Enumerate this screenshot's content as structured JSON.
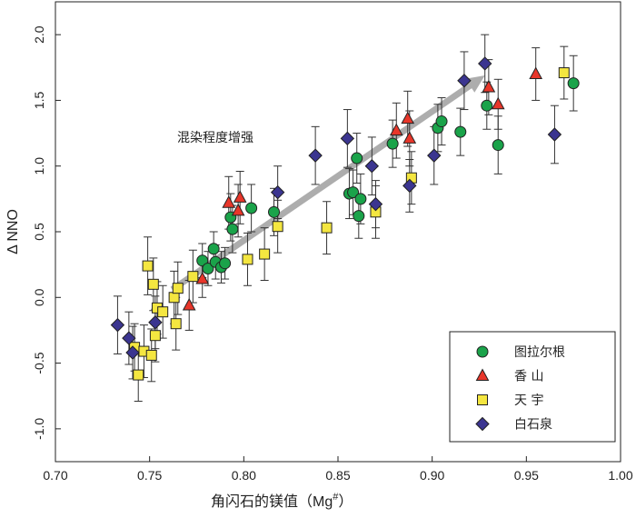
{
  "chart_data": {
    "type": "scatter",
    "xlabel": "角闪石的镁值（Mg#）",
    "xlabel_main": "角闪石的镁值（Mg",
    "xlabel_sup": "#",
    "xlabel_close": "）",
    "ylabel": "Δ NNO",
    "xlim": [
      0.7,
      1.0
    ],
    "ylim": [
      -1.25,
      2.25
    ],
    "xticks": [
      "0.70",
      "0.75",
      "0.80",
      "0.85",
      "0.90",
      "0.95",
      "1.00"
    ],
    "yticks": [
      "-1.0",
      "-0.5",
      "0.0",
      "0.5",
      "1.0",
      "1.5",
      "2.0"
    ],
    "annotation": "混染程度增强",
    "trend_arrow": {
      "from": [
        0.762,
        0.06
      ],
      "to": [
        0.928,
        1.69
      ]
    },
    "legend_position": "bottom-right",
    "series": [
      {
        "name": "图拉尔根",
        "marker": "circle",
        "color": "#1aa34a",
        "points": [
          {
            "x": 0.778,
            "y": 0.28,
            "err": 0.13
          },
          {
            "x": 0.781,
            "y": 0.22,
            "err": 0.13
          },
          {
            "x": 0.784,
            "y": 0.37,
            "err": 0.13
          },
          {
            "x": 0.785,
            "y": 0.27,
            "err": 0.13
          },
          {
            "x": 0.788,
            "y": 0.23,
            "err": 0.12
          },
          {
            "x": 0.79,
            "y": 0.26,
            "err": 0.12
          },
          {
            "x": 0.793,
            "y": 0.61,
            "err": 0.18
          },
          {
            "x": 0.794,
            "y": 0.52,
            "err": 0.18
          },
          {
            "x": 0.804,
            "y": 0.68,
            "err": 0.18
          },
          {
            "x": 0.816,
            "y": 0.65,
            "err": 0.18
          },
          {
            "x": 0.856,
            "y": 0.79,
            "err": 0.19
          },
          {
            "x": 0.858,
            "y": 0.8,
            "err": 0.17
          },
          {
            "x": 0.86,
            "y": 1.06,
            "err": 0.19
          },
          {
            "x": 0.861,
            "y": 0.62,
            "err": 0.17
          },
          {
            "x": 0.862,
            "y": 0.75,
            "err": 0.19
          },
          {
            "x": 0.879,
            "y": 1.17,
            "err": 0.18
          },
          {
            "x": 0.903,
            "y": 1.29,
            "err": 0.18
          },
          {
            "x": 0.905,
            "y": 1.34,
            "err": 0.18
          },
          {
            "x": 0.915,
            "y": 1.26,
            "err": 0.18
          },
          {
            "x": 0.929,
            "y": 1.46,
            "err": 0.18
          },
          {
            "x": 0.935,
            "y": 1.16,
            "err": 0.22
          },
          {
            "x": 0.975,
            "y": 1.63,
            "err": 0.21
          }
        ]
      },
      {
        "name": "香 山",
        "marker": "triangle",
        "color": "#e8362a",
        "points": [
          {
            "x": 0.771,
            "y": -0.06,
            "err": 0.19
          },
          {
            "x": 0.778,
            "y": 0.14,
            "err": 0.14
          },
          {
            "x": 0.792,
            "y": 0.72,
            "err": 0.2
          },
          {
            "x": 0.797,
            "y": 0.66,
            "err": 0.2
          },
          {
            "x": 0.798,
            "y": 0.76,
            "err": 0.2
          },
          {
            "x": 0.881,
            "y": 1.27,
            "err": 0.21
          },
          {
            "x": 0.887,
            "y": 1.36,
            "err": 0.21
          },
          {
            "x": 0.888,
            "y": 1.21,
            "err": 0.21
          },
          {
            "x": 0.93,
            "y": 1.6,
            "err": 0.21
          },
          {
            "x": 0.935,
            "y": 1.47,
            "err": 0.19
          },
          {
            "x": 0.955,
            "y": 1.7,
            "err": 0.2
          }
        ]
      },
      {
        "name": "天 宇",
        "marker": "square",
        "color": "#f4e640",
        "points": [
          {
            "x": 0.742,
            "y": -0.38,
            "err": 0.18
          },
          {
            "x": 0.744,
            "y": -0.59,
            "err": 0.2
          },
          {
            "x": 0.747,
            "y": -0.41,
            "err": 0.2
          },
          {
            "x": 0.749,
            "y": 0.24,
            "err": 0.22
          },
          {
            "x": 0.751,
            "y": -0.44,
            "err": 0.2
          },
          {
            "x": 0.752,
            "y": 0.1,
            "err": 0.2
          },
          {
            "x": 0.753,
            "y": -0.29,
            "err": 0.2
          },
          {
            "x": 0.754,
            "y": -0.08,
            "err": 0.2
          },
          {
            "x": 0.757,
            "y": -0.11,
            "err": 0.2
          },
          {
            "x": 0.763,
            "y": 0.0,
            "err": 0.2
          },
          {
            "x": 0.764,
            "y": -0.2,
            "err": 0.2
          },
          {
            "x": 0.765,
            "y": 0.07,
            "err": 0.2
          },
          {
            "x": 0.773,
            "y": 0.16,
            "err": 0.2
          },
          {
            "x": 0.802,
            "y": 0.29,
            "err": 0.2
          },
          {
            "x": 0.811,
            "y": 0.33,
            "err": 0.2
          },
          {
            "x": 0.818,
            "y": 0.54,
            "err": 0.2
          },
          {
            "x": 0.844,
            "y": 0.53,
            "err": 0.2
          },
          {
            "x": 0.87,
            "y": 0.65,
            "err": 0.2
          },
          {
            "x": 0.889,
            "y": 0.91,
            "err": 0.2
          },
          {
            "x": 0.97,
            "y": 1.71,
            "err": 0.2
          }
        ]
      },
      {
        "name": "白石泉",
        "marker": "diamond",
        "color": "#3b3590",
        "points": [
          {
            "x": 0.733,
            "y": -0.21,
            "err": 0.22
          },
          {
            "x": 0.739,
            "y": -0.31,
            "err": 0.2
          },
          {
            "x": 0.741,
            "y": -0.42,
            "err": 0.2
          },
          {
            "x": 0.753,
            "y": -0.19,
            "err": 0.2
          },
          {
            "x": 0.818,
            "y": 0.8,
            "err": 0.2
          },
          {
            "x": 0.838,
            "y": 1.08,
            "err": 0.22
          },
          {
            "x": 0.855,
            "y": 1.21,
            "err": 0.22
          },
          {
            "x": 0.868,
            "y": 1.0,
            "err": 0.22
          },
          {
            "x": 0.87,
            "y": 0.71,
            "err": 0.18
          },
          {
            "x": 0.888,
            "y": 0.85,
            "err": 0.2
          },
          {
            "x": 0.901,
            "y": 1.08,
            "err": 0.22
          },
          {
            "x": 0.917,
            "y": 1.65,
            "err": 0.22
          },
          {
            "x": 0.928,
            "y": 1.78,
            "err": 0.22
          },
          {
            "x": 0.965,
            "y": 1.24,
            "err": 0.22
          }
        ]
      }
    ]
  }
}
